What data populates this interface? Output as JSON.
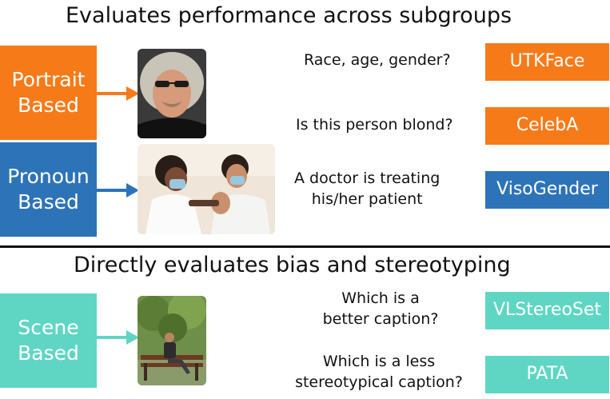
{
  "colors": {
    "orange": "#f77a19",
    "blue": "#2d73b8",
    "teal": "#5fd6c4",
    "divider": "#111111"
  },
  "section_top": {
    "heading": "Evaluates performance across subgroups",
    "categories": [
      {
        "line1": "Portrait",
        "line2": "Based"
      },
      {
        "line1": "Pronoun",
        "line2": "Based"
      }
    ],
    "rows": [
      {
        "question": "Race, age, gender?",
        "dataset": "UTKFace"
      },
      {
        "question": "Is this person blond?",
        "dataset": "CelebA"
      },
      {
        "question_line1": "A doctor is treating",
        "question_line2": "his/her patient",
        "dataset": "VisoGender"
      }
    ]
  },
  "section_bottom": {
    "heading": "Directly evaluates bias and stereotyping",
    "category": {
      "line1": "Scene",
      "line2": "Based"
    },
    "rows": [
      {
        "question_line1": "Which is a",
        "question_line2": "better caption?",
        "dataset": "VLStereoSet"
      },
      {
        "question_line1": "Which is a less",
        "question_line2": "stereotypical caption?",
        "dataset": "PATA"
      }
    ]
  }
}
